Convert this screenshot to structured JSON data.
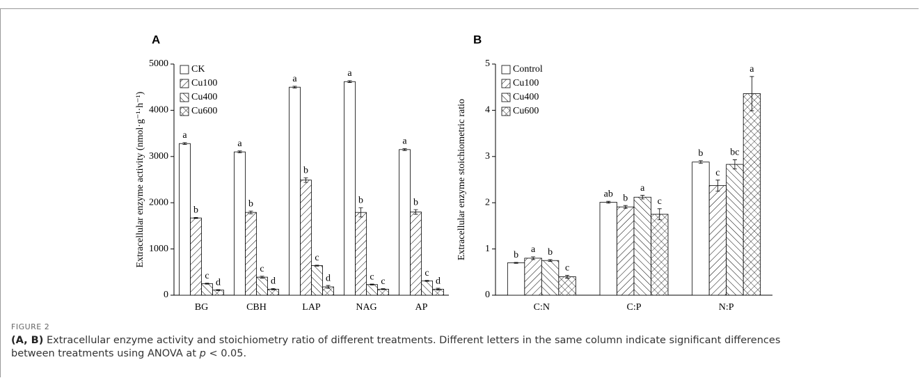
{
  "chart_data": [
    {
      "type": "bar",
      "panel": "A",
      "y_label": "Extracellular enzyme activity (nmol·g⁻¹·h⁻¹)",
      "categories": [
        "BG",
        "CBH",
        "LAP",
        "NAG",
        "AP"
      ],
      "series": [
        {
          "name": "CK",
          "hatch": "none",
          "values": [
            3280,
            3100,
            4500,
            4620,
            3150
          ],
          "errors": [
            20,
            20,
            20,
            20,
            20
          ],
          "labels": [
            "a",
            "a",
            "a",
            "a",
            "a"
          ]
        },
        {
          "name": "Cu100",
          "hatch": "/",
          "values": [
            1670,
            1790,
            2490,
            1790,
            1800
          ],
          "errors": [
            10,
            30,
            50,
            100,
            50
          ],
          "labels": [
            "b",
            "b",
            "b",
            "b",
            "b"
          ]
        },
        {
          "name": "Cu400",
          "hatch": "\\",
          "values": [
            250,
            390,
            640,
            230,
            310
          ],
          "errors": [
            10,
            20,
            10,
            10,
            10
          ],
          "labels": [
            "c",
            "c",
            "c",
            "c",
            "c"
          ]
        },
        {
          "name": "Cu600",
          "hatch": "x",
          "values": [
            110,
            130,
            180,
            130,
            130
          ],
          "errors": [
            10,
            15,
            30,
            10,
            20
          ],
          "labels": [
            "d",
            "d",
            "d",
            "c",
            "d"
          ]
        }
      ],
      "ylim": [
        0,
        5000
      ],
      "yticks": [
        0,
        1000,
        2000,
        3000,
        4000,
        5000
      ],
      "legend": "upper left"
    },
    {
      "type": "bar",
      "panel": "B",
      "y_label": "Extracellular enzyme stoichiometric ratio",
      "categories": [
        "C:N",
        "C:P",
        "N:P"
      ],
      "series": [
        {
          "name": "Control",
          "hatch": "none",
          "values": [
            0.7,
            2.01,
            2.88
          ],
          "errors": [
            0.01,
            0.02,
            0.03
          ],
          "labels": [
            "b",
            "ab",
            "b"
          ]
        },
        {
          "name": "Cu100",
          "hatch": "/",
          "values": [
            0.8,
            1.91,
            2.37
          ],
          "errors": [
            0.03,
            0.03,
            0.12
          ],
          "labels": [
            "a",
            "b",
            "c"
          ]
        },
        {
          "name": "Cu400",
          "hatch": "\\",
          "values": [
            0.75,
            2.12,
            2.83
          ],
          "errors": [
            0.02,
            0.04,
            0.1
          ],
          "labels": [
            "b",
            "a",
            "bc"
          ]
        },
        {
          "name": "Cu600",
          "hatch": "x",
          "values": [
            0.4,
            1.75,
            4.36
          ],
          "errors": [
            0.03,
            0.12,
            0.37
          ],
          "labels": [
            "c",
            "c",
            "a"
          ]
        }
      ],
      "ylim": [
        0,
        5
      ],
      "yticks": [
        0,
        1,
        2,
        3,
        4,
        5
      ],
      "legend": "upper left"
    }
  ],
  "caption": {
    "label": "FIGURE 2",
    "panels": "(A, B)",
    "text": " Extracellular enzyme activity and stoichiometry ratio of different treatments. Different letters in the same column indicate significant differences between treatments using ANOVA at ",
    "variable": "p",
    "rest": " < 0.05."
  }
}
